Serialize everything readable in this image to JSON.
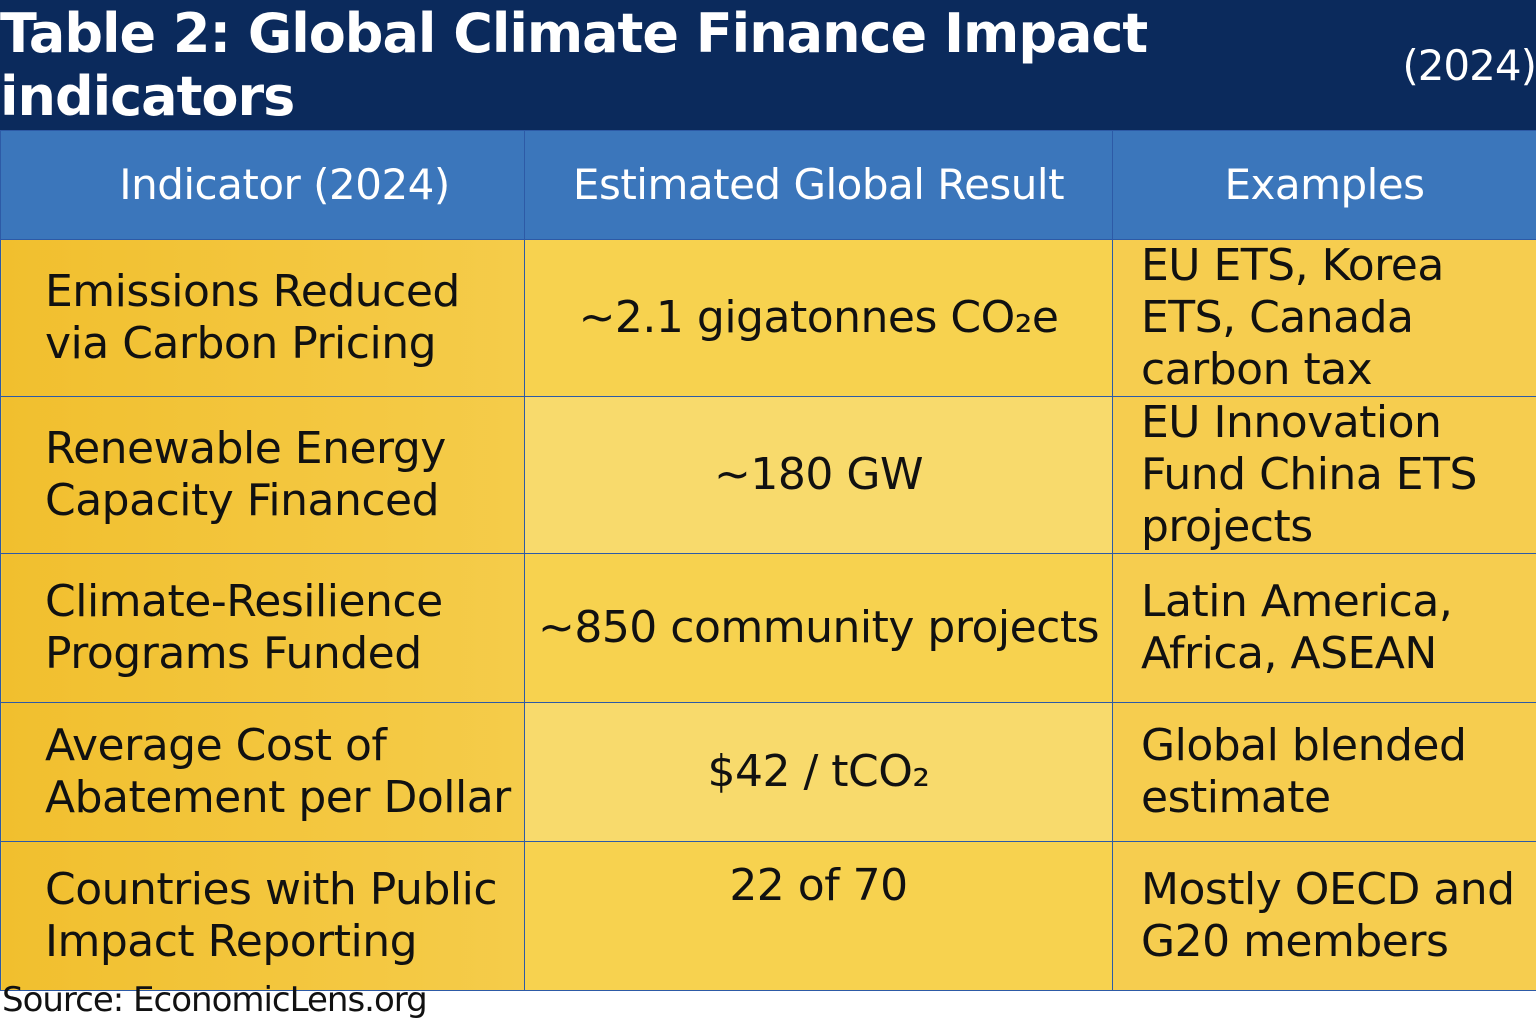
{
  "title": "Table 2: Global Climate Finance Impact indicators",
  "title_year": "(2024)",
  "colors": {
    "title_bg": "#0b2a5c",
    "header_bg": "#3b76bb",
    "cell_gold": "#f5cc4a",
    "cell_light": "#f8da6c",
    "border": "#2d5aa6"
  },
  "chart_data": {
    "type": "table",
    "columns": [
      "Indicator (2024)",
      "Estimated Global Result",
      "Examples"
    ],
    "rows": [
      [
        "Emissions Reduced via Carbon Pricing",
        "~2.1 gigatonnes CO₂e",
        "EU ETS, Korea ETS, Canada carbon tax"
      ],
      [
        "Renewable Energy Capacity Financed",
        "~180 GW",
        "EU Innovation Fund China ETS projects"
      ],
      [
        "Climate-Resilience Programs Funded",
        "~850 community projects",
        "Latin America, Africa, ASEAN"
      ],
      [
        "Average Cost of Abatement per Dollar",
        "$42 / tCO₂",
        "Global blended estimate"
      ],
      [
        "Countries with Public Impact Reporting",
        "22 of 70",
        "Mostly OECD and G20 members"
      ]
    ]
  },
  "source": "Source: EconomicLens.org"
}
